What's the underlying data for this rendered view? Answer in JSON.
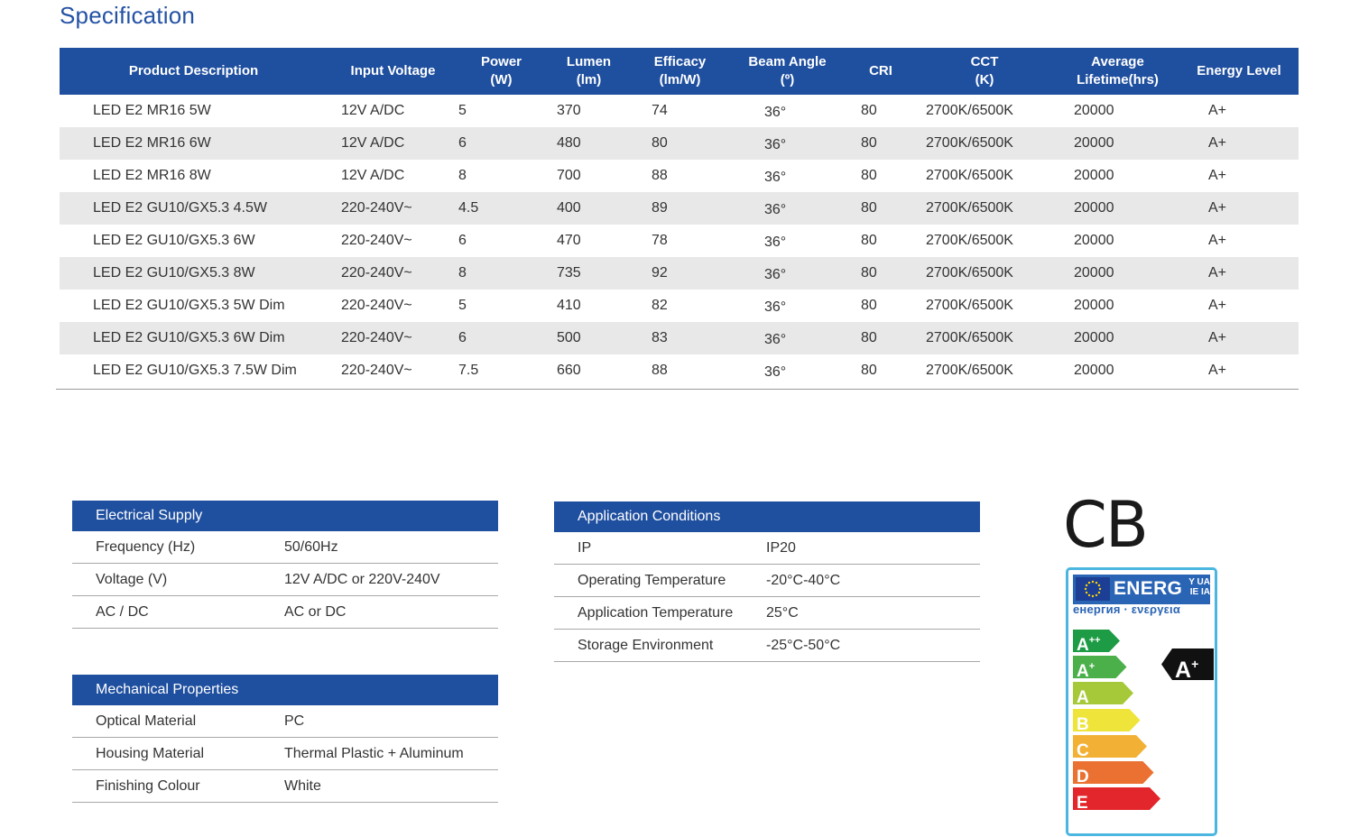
{
  "title": "Specification",
  "spec_table": {
    "headers": [
      "Product Description",
      "Input Voltage",
      "Power\n(W)",
      "Lumen\n(lm)",
      "Efficacy\n(lm/W)",
      "Beam Angle\n(º)",
      "CRI",
      "CCT\n(K)",
      "Average\nLifetime(hrs)",
      "Energy Level"
    ],
    "rows": [
      [
        "LED E2 MR16 5W",
        "12V A/DC",
        "5",
        "370",
        "74",
        "36°",
        "80",
        "2700K/6500K",
        "20000",
        "A+"
      ],
      [
        "LED E2 MR16 6W",
        "12V A/DC",
        "6",
        "480",
        "80",
        "36°",
        "80",
        "2700K/6500K",
        "20000",
        "A+"
      ],
      [
        "LED E2 MR16 8W",
        "12V A/DC",
        "8",
        "700",
        "88",
        "36°",
        "80",
        "2700K/6500K",
        "20000",
        "A+"
      ],
      [
        "LED E2 GU10/GX5.3 4.5W",
        "220-240V~",
        "4.5",
        "400",
        "89",
        "36°",
        "80",
        "2700K/6500K",
        "20000",
        "A+"
      ],
      [
        "LED E2 GU10/GX5.3 6W",
        "220-240V~",
        "6",
        "470",
        "78",
        "36°",
        "80",
        "2700K/6500K",
        "20000",
        "A+"
      ],
      [
        "LED E2 GU10/GX5.3 8W",
        "220-240V~",
        "8",
        "735",
        "92",
        "36°",
        "80",
        "2700K/6500K",
        "20000",
        "A+"
      ],
      [
        "LED E2 GU10/GX5.3 5W Dim",
        "220-240V~",
        "5",
        "410",
        "82",
        "36°",
        "80",
        "2700K/6500K",
        "20000",
        "A+"
      ],
      [
        "LED E2 GU10/GX5.3 6W Dim",
        "220-240V~",
        "6",
        "500",
        "83",
        "36°",
        "80",
        "2700K/6500K",
        "20000",
        "A+"
      ],
      [
        "LED E2 GU10/GX5.3 7.5W Dim",
        "220-240V~",
        "7.5",
        "660",
        "88",
        "36°",
        "80",
        "2700K/6500K",
        "20000",
        "A+"
      ]
    ]
  },
  "electrical": {
    "title": "Electrical Supply",
    "rows": [
      {
        "k": "Frequency (Hz)",
        "v": "50/60Hz"
      },
      {
        "k": "Voltage (V)",
        "v": "12V A/DC or 220V-240V"
      },
      {
        "k": "AC / DC",
        "v": "AC or DC"
      }
    ]
  },
  "mechanical": {
    "title": "Mechanical  Properties",
    "rows": [
      {
        "k": "Optical Material",
        "v": "PC"
      },
      {
        "k": "Housing Material",
        "v": "Thermal Plastic + Aluminum"
      },
      {
        "k": "Finishing Colour",
        "v": "White"
      }
    ]
  },
  "application": {
    "title": "Application Conditions",
    "rows": [
      {
        "k": "IP",
        "v": "IP20"
      },
      {
        "k": "Operating Temperature",
        "v": "-20°C-40°C"
      },
      {
        "k": "Application Temperature",
        "v": "25°C"
      },
      {
        "k": "Storage Environment",
        "v": "-25°C-50°C"
      }
    ]
  },
  "cb_mark": "CB",
  "energy_label": {
    "header_word": "ENERG",
    "header_suffix_top": "Y UA",
    "header_suffix_bottom": "IE IA",
    "subtitle": "енергия · ενεργεια",
    "classes": [
      {
        "main": "A",
        "sup": "++",
        "color": "#1e9b45"
      },
      {
        "main": "A",
        "sup": "+",
        "color": "#4bb04a"
      },
      {
        "main": "A",
        "sup": "",
        "color": "#a6c93a"
      },
      {
        "main": "B",
        "sup": "",
        "color": "#eee43a"
      },
      {
        "main": "C",
        "sup": "",
        "color": "#f2b135"
      },
      {
        "main": "D",
        "sup": "",
        "color": "#ea7131"
      },
      {
        "main": "E",
        "sup": "",
        "color": "#e2262b"
      }
    ],
    "rating_main": "A",
    "rating_sup": "+",
    "flag_icon": "eu-flag-icon"
  }
}
